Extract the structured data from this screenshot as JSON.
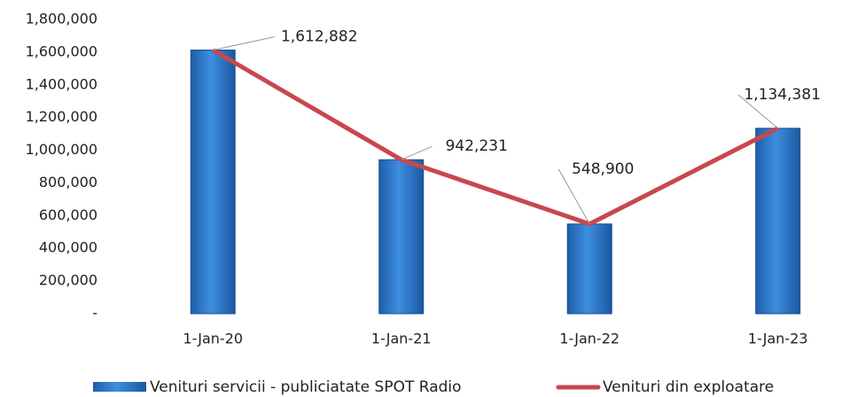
{
  "chart_data": {
    "type": "bar-line",
    "categories": [
      "1-Jan-20",
      "1-Jan-21",
      "1-Jan-22",
      "1-Jan-23"
    ],
    "series": [
      {
        "name": "Venituri servicii - publiciatate SPOT Radio",
        "type": "bar",
        "color": "#2f7bd0",
        "values": [
          1612882,
          942231,
          548900,
          1134381
        ],
        "value_labels": [
          "1,612,882",
          "942,231",
          "548,900",
          "1,134,381"
        ]
      },
      {
        "name": "Venituri din exploatare",
        "type": "line",
        "color": "#c9474f",
        "values": [
          1612882,
          942231,
          548900,
          1134381
        ]
      }
    ],
    "ylim": [
      0,
      1800000
    ],
    "yticks": [
      {
        "value": 0,
        "label": "-"
      },
      {
        "value": 200000,
        "label": "200,000"
      },
      {
        "value": 400000,
        "label": "400,000"
      },
      {
        "value": 600000,
        "label": "600,000"
      },
      {
        "value": 800000,
        "label": "800,000"
      },
      {
        "value": 1000000,
        "label": "1,000,000"
      },
      {
        "value": 1200000,
        "label": "1,200,000"
      },
      {
        "value": 1400000,
        "label": "1,400,000"
      },
      {
        "value": 1600000,
        "label": "1,600,000"
      },
      {
        "value": 1800000,
        "label": "1,800,000"
      }
    ],
    "grid": false,
    "legend": "bottom"
  }
}
